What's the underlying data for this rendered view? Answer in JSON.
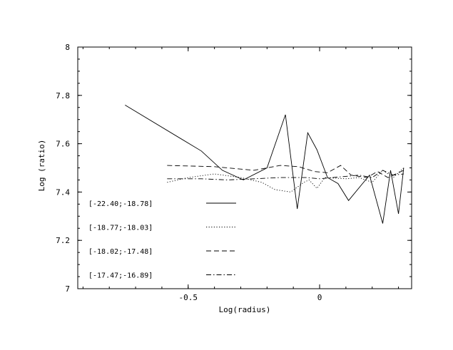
{
  "chart_data": {
    "type": "line",
    "xlabel": "Log(radius)",
    "ylabel": "Log (ratio)",
    "xlim": [
      -0.92,
      0.35
    ],
    "ylim": [
      7.0,
      8.0
    ],
    "x_ticks": [
      -0.5,
      0
    ],
    "x_tick_labels": [
      "-0.5",
      "0"
    ],
    "y_ticks": [
      7.0,
      7.2,
      7.4,
      7.6,
      7.8,
      8.0
    ],
    "y_tick_labels": [
      "7",
      "7.2",
      "7.4",
      "7.6",
      "7.8",
      "8"
    ],
    "grid": false,
    "legend_position": "lower-left, inside",
    "series": [
      {
        "name": "[-22.40;-18.78]",
        "style": "solid",
        "x": [
          -0.74,
          -0.45,
          -0.37,
          -0.29,
          -0.2,
          -0.13,
          -0.085,
          -0.045,
          -0.01,
          0.03,
          0.07,
          0.11,
          0.19,
          0.24,
          0.27,
          0.3,
          0.32
        ],
        "y": [
          7.76,
          7.57,
          7.49,
          7.45,
          7.5,
          7.72,
          7.33,
          7.645,
          7.575,
          7.46,
          7.435,
          7.365,
          7.47,
          7.27,
          7.49,
          7.31,
          7.5
        ]
      },
      {
        "name": "[-18.77;-18.03]",
        "style": "dotted",
        "x": [
          -0.58,
          -0.5,
          -0.4,
          -0.3,
          -0.22,
          -0.17,
          -0.11,
          -0.06,
          -0.04,
          -0.01,
          0.02,
          0.1,
          0.15,
          0.2,
          0.24,
          0.28,
          0.32
        ],
        "y": [
          7.44,
          7.46,
          7.475,
          7.46,
          7.44,
          7.41,
          7.4,
          7.44,
          7.45,
          7.415,
          7.46,
          7.455,
          7.46,
          7.44,
          7.49,
          7.46,
          7.5
        ]
      },
      {
        "name": "[-18.02;-17.48]",
        "style": "dashed",
        "x": [
          -0.58,
          -0.4,
          -0.25,
          -0.15,
          -0.08,
          -0.02,
          0.03,
          0.08,
          0.12,
          0.18,
          0.22,
          0.26,
          0.32
        ],
        "y": [
          7.51,
          7.505,
          7.49,
          7.51,
          7.505,
          7.485,
          7.48,
          7.51,
          7.47,
          7.46,
          7.485,
          7.46,
          7.49
        ]
      },
      {
        "name": "[-17.47;-16.89]",
        "style": "dashdot",
        "x": [
          -0.58,
          -0.45,
          -0.35,
          -0.25,
          -0.15,
          -0.05,
          0.0,
          0.05,
          0.1,
          0.15,
          0.2,
          0.24,
          0.28,
          0.32
        ],
        "y": [
          7.455,
          7.455,
          7.45,
          7.455,
          7.46,
          7.46,
          7.455,
          7.46,
          7.465,
          7.47,
          7.46,
          7.49,
          7.47,
          7.475
        ]
      }
    ]
  }
}
